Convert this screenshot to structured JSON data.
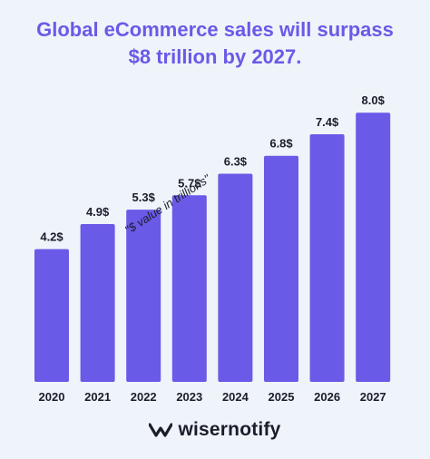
{
  "title_line1": "Global eCommerce sales will surpass",
  "title_line2": "$8 trillion by 2027.",
  "brand": "wisernotify",
  "colors": {
    "bar": "#6a5ae8",
    "title": "#6a5ae8",
    "text": "#1c1c2b",
    "background": "#eef4f9"
  },
  "chart_data": {
    "type": "bar",
    "categories": [
      "2020",
      "2021",
      "2022",
      "2023",
      "2024",
      "2025",
      "2026",
      "2027"
    ],
    "values": [
      4.2,
      4.9,
      5.3,
      5.7,
      6.3,
      6.8,
      7.4,
      8.0
    ],
    "value_labels": [
      "4.2$",
      "4.9$",
      "5.3$",
      "5.7$",
      "6.3$",
      "6.8$",
      "7.4$",
      "8.0$"
    ],
    "annotation": "\"$ value in trillions\"",
    "grid": false,
    "legend": "none"
  }
}
